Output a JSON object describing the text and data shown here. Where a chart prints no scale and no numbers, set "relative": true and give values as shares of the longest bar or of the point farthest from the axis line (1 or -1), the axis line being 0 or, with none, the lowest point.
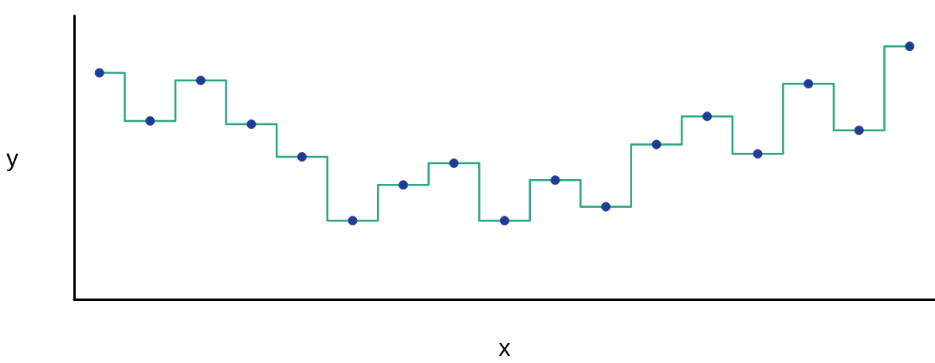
{
  "chart_data": {
    "type": "step",
    "relative": true,
    "xlabel": "x",
    "ylabel": "y",
    "marker": "circle",
    "grid": false,
    "categories": [
      null,
      null,
      null,
      null,
      null,
      null,
      null,
      null,
      null,
      null,
      null,
      null,
      null,
      null,
      null,
      null,
      null
    ],
    "series": [
      {
        "color": "#2ba586",
        "values": [
          0.895,
          0.705,
          0.865,
          0.692,
          0.563,
          0.311,
          0.452,
          0.538,
          0.311,
          0.471,
          0.366,
          0.612,
          0.723,
          0.575,
          0.852,
          0.668,
          1
        ]
      }
    ]
  }
}
